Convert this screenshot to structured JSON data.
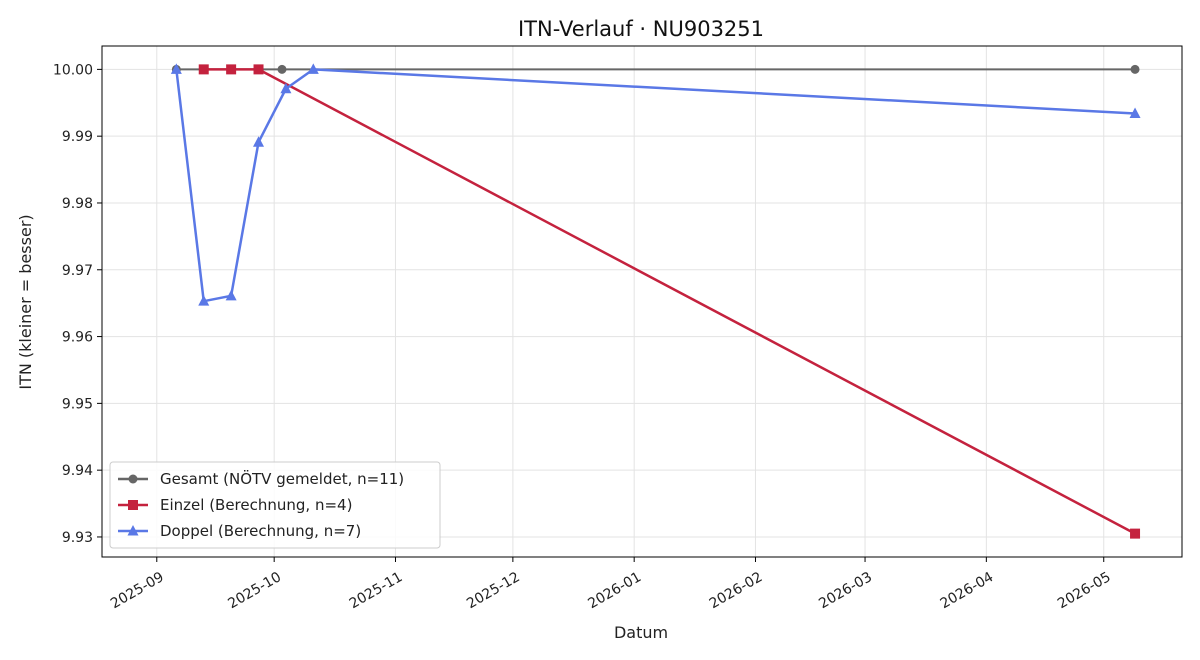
{
  "chart_data": {
    "type": "line",
    "title": "ITN-Verlauf · NU903251",
    "xlabel": "Datum",
    "ylabel": "ITN  (kleiner = besser)",
    "x_type": "date",
    "xlim": [
      "2025-08-18",
      "2026-05-21"
    ],
    "ylim": [
      9.927,
      10.0035
    ],
    "x_ticks": [
      "2025-09-01",
      "2025-10-01",
      "2025-11-01",
      "2025-12-01",
      "2026-01-01",
      "2026-02-01",
      "2026-03-01",
      "2026-04-01",
      "2026-05-01"
    ],
    "x_tick_labels": [
      "2025-09",
      "2025-10",
      "2025-11",
      "2025-12",
      "2026-01",
      "2026-02",
      "2026-03",
      "2026-04",
      "2026-05"
    ],
    "y_ticks": [
      9.93,
      9.94,
      9.95,
      9.96,
      9.97,
      9.98,
      9.99,
      10.0
    ],
    "y_tick_labels": [
      "9.93",
      "9.94",
      "9.95",
      "9.96",
      "9.97",
      "9.98",
      "9.99",
      "10.00"
    ],
    "grid": true,
    "legend_position": "lower-left",
    "series": [
      {
        "name": "Gesamt (NÖTV gemeldet, n=11)",
        "color": "#666666",
        "marker": "circle",
        "points": [
          {
            "x": "2025-09-06",
            "y": 10.0
          },
          {
            "x": "2025-10-03",
            "y": 10.0
          },
          {
            "x": "2026-05-09",
            "y": 10.0
          }
        ]
      },
      {
        "name": "Einzel (Berechnung, n=4)",
        "color": "#c4223e",
        "marker": "square",
        "points": [
          {
            "x": "2025-09-13",
            "y": 10.0
          },
          {
            "x": "2025-09-20",
            "y": 10.0
          },
          {
            "x": "2025-09-27",
            "y": 10.0
          },
          {
            "x": "2026-05-09",
            "y": 9.9305
          }
        ]
      },
      {
        "name": "Doppel (Berechnung, n=7)",
        "color": "#5a78e6",
        "marker": "triangle",
        "points": [
          {
            "x": "2025-09-06",
            "y": 10.0
          },
          {
            "x": "2025-09-13",
            "y": 9.9653
          },
          {
            "x": "2025-09-20",
            "y": 9.9661
          },
          {
            "x": "2025-09-27",
            "y": 9.9891
          },
          {
            "x": "2025-10-04",
            "y": 9.9971
          },
          {
            "x": "2025-10-11",
            "y": 10.0
          },
          {
            "x": "2026-05-09",
            "y": 9.9934
          }
        ]
      }
    ]
  }
}
